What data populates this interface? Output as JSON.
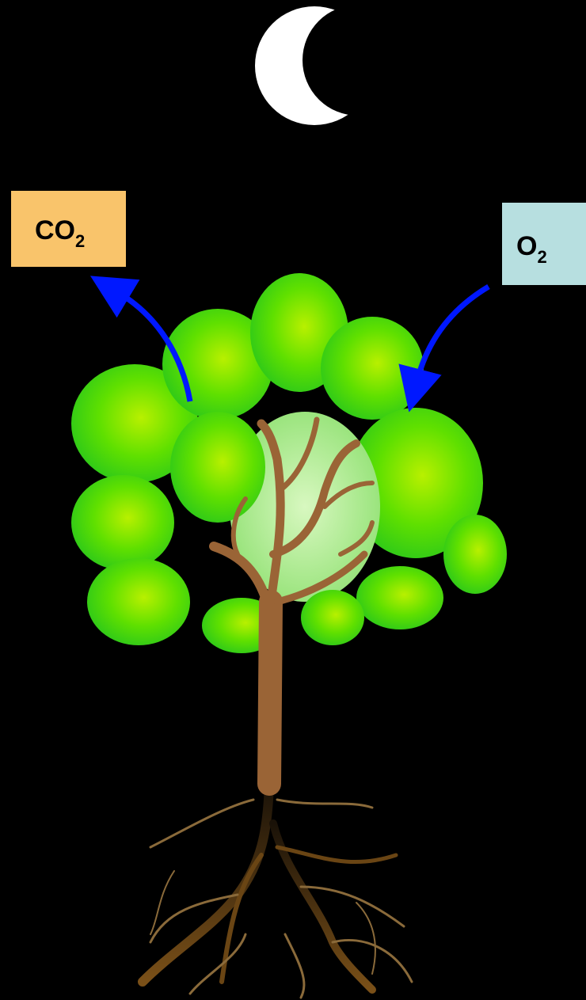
{
  "labels": [
    {
      "text": "CO",
      "subscript": "2"
    },
    {
      "text": "O",
      "subscript": "2"
    }
  ]
}
